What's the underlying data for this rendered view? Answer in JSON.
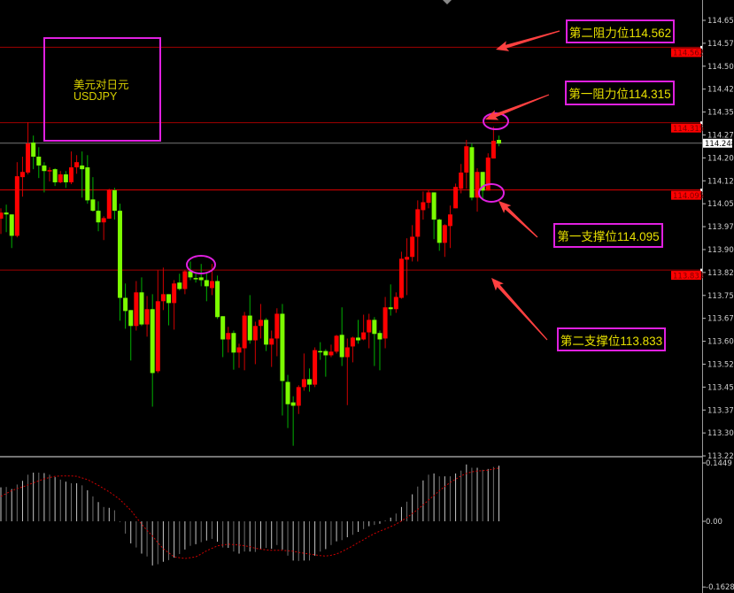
{
  "chart_data": {
    "type": "candlestick",
    "symbol_label": "美元对日元",
    "symbol": "USDJPY",
    "colors": {
      "bull": "#ff0000",
      "bear": "#7cfc00",
      "bull_wick": "#d00000",
      "bear_wick": "#00b000",
      "level_line": "#b00000",
      "annotation_border": "#e020e0",
      "annotation_text": "#e8e000",
      "macd_bar": "#b8b8b8",
      "macd_signal": "#d00000"
    },
    "price_axis": {
      "ylim": [
        113.225,
        114.675
      ],
      "ticks": [
        "114.650",
        "114.575",
        "114.500",
        "114.425",
        "114.350",
        "114.275",
        "114.200",
        "114.125",
        "114.050",
        "113.975",
        "113.900",
        "113.825",
        "113.750",
        "113.675",
        "113.600",
        "113.525",
        "113.450",
        "113.375",
        "113.300",
        "113.225"
      ],
      "current_price": "114.248"
    },
    "candles_ohlc": [
      [
        114.001,
        114.035,
        113.951,
        114.021
      ],
      [
        114.021,
        114.047,
        113.957,
        114.015
      ],
      [
        114.015,
        114.015,
        113.905,
        113.945
      ],
      [
        113.945,
        114.186,
        113.94,
        114.14
      ],
      [
        114.137,
        114.204,
        114.073,
        114.154
      ],
      [
        114.152,
        114.317,
        114.146,
        114.247
      ],
      [
        114.25,
        114.273,
        114.163,
        114.204
      ],
      [
        114.204,
        114.235,
        114.134,
        114.175
      ],
      [
        114.175,
        114.186,
        114.087,
        114.157
      ],
      [
        114.157,
        114.169,
        114.123,
        114.16
      ],
      [
        114.163,
        114.166,
        114.108,
        114.12
      ],
      [
        114.12,
        114.157,
        114.117,
        114.146
      ],
      [
        114.146,
        114.157,
        114.102,
        114.12
      ],
      [
        114.12,
        114.221,
        114.114,
        114.169
      ],
      [
        114.169,
        114.209,
        114.148,
        114.186
      ],
      [
        114.175,
        114.221,
        114.07,
        114.163
      ],
      [
        114.169,
        114.209,
        114.05,
        114.061
      ],
      [
        114.064,
        114.137,
        114.024,
        114.027
      ],
      [
        114.027,
        114.058,
        113.96,
        113.989
      ],
      [
        113.989,
        114.009,
        113.931,
        114.003
      ],
      [
        114.001,
        114.099,
        114.001,
        114.096
      ],
      [
        114.094,
        114.102,
        113.998,
        114.027
      ],
      [
        114.027,
        114.05,
        113.667,
        113.742
      ],
      [
        113.742,
        113.789,
        113.641,
        113.699
      ],
      [
        113.702,
        113.702,
        113.537,
        113.65
      ],
      [
        113.65,
        113.797,
        113.635,
        113.76
      ],
      [
        113.76,
        113.809,
        113.65,
        113.655
      ],
      [
        113.655,
        113.748,
        113.615,
        113.705
      ],
      [
        113.705,
        113.754,
        113.386,
        113.496
      ],
      [
        113.502,
        113.832,
        113.496,
        113.731
      ],
      [
        113.731,
        113.841,
        113.702,
        113.754
      ],
      [
        113.754,
        113.754,
        113.652,
        113.725
      ],
      [
        113.725,
        113.8,
        113.638,
        113.789
      ],
      [
        113.792,
        113.821,
        113.766,
        113.771
      ],
      [
        113.771,
        113.832,
        113.754,
        113.829
      ],
      [
        113.829,
        113.861,
        113.8,
        113.809
      ],
      [
        113.807,
        113.824,
        113.792,
        113.806
      ],
      [
        113.809,
        113.853,
        113.78,
        113.8
      ],
      [
        113.8,
        113.826,
        113.731,
        113.78
      ],
      [
        113.774,
        113.853,
        113.751,
        113.797
      ],
      [
        113.797,
        113.815,
        113.673,
        113.679
      ],
      [
        113.682,
        113.682,
        113.548,
        113.606
      ],
      [
        113.606,
        113.647,
        113.563,
        113.627
      ],
      [
        113.627,
        113.635,
        113.507,
        113.563
      ],
      [
        113.563,
        113.592,
        113.513,
        113.58
      ],
      [
        113.577,
        113.696,
        113.505,
        113.684
      ],
      [
        113.684,
        113.751,
        113.592,
        113.603
      ],
      [
        113.603,
        113.664,
        113.525,
        113.65
      ],
      [
        113.65,
        113.722,
        113.609,
        113.67
      ],
      [
        113.67,
        113.676,
        113.568,
        113.589
      ],
      [
        113.589,
        113.635,
        113.516,
        113.609
      ],
      [
        113.609,
        113.708,
        113.551,
        113.69
      ],
      [
        113.69,
        113.722,
        113.357,
        113.47
      ],
      [
        113.467,
        113.49,
        113.316,
        113.394
      ],
      [
        113.4,
        113.42,
        113.258,
        113.389
      ],
      [
        113.389,
        113.456,
        113.362,
        113.45
      ],
      [
        113.45,
        113.56,
        113.438,
        113.476
      ],
      [
        113.476,
        113.511,
        113.435,
        113.458
      ],
      [
        113.458,
        113.58,
        113.45,
        113.571
      ],
      [
        113.568,
        113.597,
        113.539,
        113.566
      ],
      [
        113.568,
        113.574,
        113.484,
        113.554
      ],
      [
        113.554,
        113.589,
        113.548,
        113.566
      ],
      [
        113.566,
        113.621,
        113.56,
        113.618
      ],
      [
        113.621,
        113.711,
        113.519,
        113.548
      ],
      [
        113.548,
        113.609,
        113.391,
        113.58
      ],
      [
        113.583,
        113.615,
        113.531,
        113.612
      ],
      [
        113.612,
        113.67,
        113.592,
        113.603
      ],
      [
        113.606,
        113.687,
        113.603,
        113.629
      ],
      [
        113.629,
        113.69,
        113.577,
        113.67
      ],
      [
        113.67,
        113.679,
        113.519,
        113.624
      ],
      [
        113.627,
        113.635,
        113.505,
        113.606
      ],
      [
        113.609,
        113.745,
        113.577,
        113.711
      ],
      [
        113.711,
        113.786,
        113.684,
        113.705
      ],
      [
        113.705,
        113.76,
        113.693,
        113.745
      ],
      [
        113.742,
        113.893,
        113.739,
        113.87
      ],
      [
        113.867,
        113.937,
        113.751,
        113.876
      ],
      [
        113.876,
        113.98,
        113.861,
        113.942
      ],
      [
        113.942,
        114.061,
        113.861,
        114.032
      ],
      [
        114.029,
        114.09,
        113.998,
        114.055
      ],
      [
        114.053,
        114.096,
        114.035,
        114.087
      ],
      [
        114.087,
        114.087,
        113.934,
        113.998
      ],
      [
        113.998,
        114.001,
        113.896,
        113.922
      ],
      [
        113.922,
        113.983,
        113.876,
        113.98
      ],
      [
        113.977,
        114.044,
        113.905,
        114.015
      ],
      [
        114.035,
        114.116,
        114.035,
        114.105
      ],
      [
        114.099,
        114.18,
        114.084,
        114.152
      ],
      [
        114.152,
        114.259,
        114.099,
        114.238
      ],
      [
        114.235,
        114.247,
        114.061,
        114.07
      ],
      [
        114.07,
        114.166,
        114.024,
        114.154
      ],
      [
        114.154,
        114.154,
        114.061,
        114.093
      ],
      [
        114.093,
        114.215,
        114.093,
        114.201
      ],
      [
        114.198,
        114.302,
        114.198,
        114.256
      ],
      [
        114.259,
        114.273,
        114.238,
        114.247
      ]
    ],
    "levels": [
      {
        "price": 114.562,
        "axis_label": "114.562",
        "annotation": "第二阻力位114.562"
      },
      {
        "price": 114.315,
        "axis_label": "114.315",
        "annotation": "第一阻力位114.315"
      },
      {
        "price": 114.095,
        "axis_label": "114.095",
        "annotation": "第一支撑位114.095"
      },
      {
        "price": 113.833,
        "axis_label": "113.833",
        "annotation": "第二支撑位113.833"
      }
    ],
    "macd": {
      "axis_labels": {
        "top": "0.1449",
        "zero": "0.00",
        "bottom": "-0.1628"
      },
      "ylim": [
        -0.1628,
        0.1449
      ],
      "histogram": [
        0.083,
        0.084,
        0.079,
        0.09,
        0.099,
        0.114,
        0.119,
        0.119,
        0.118,
        0.114,
        0.108,
        0.102,
        0.097,
        0.093,
        0.093,
        0.088,
        0.076,
        0.061,
        0.047,
        0.035,
        0.033,
        0.027,
        -0.001,
        -0.03,
        -0.054,
        -0.064,
        -0.079,
        -0.086,
        -0.108,
        -0.105,
        -0.099,
        -0.095,
        -0.089,
        -0.08,
        -0.069,
        -0.06,
        -0.056,
        -0.051,
        -0.047,
        -0.043,
        -0.05,
        -0.064,
        -0.065,
        -0.074,
        -0.079,
        -0.074,
        -0.074,
        -0.075,
        -0.067,
        -0.065,
        -0.067,
        -0.058,
        -0.069,
        -0.084,
        -0.096,
        -0.097,
        -0.096,
        -0.096,
        -0.084,
        -0.074,
        -0.068,
        -0.058,
        -0.049,
        -0.046,
        -0.039,
        -0.033,
        -0.026,
        -0.019,
        -0.012,
        -0.009,
        -0.006,
        0.002,
        0.009,
        0.019,
        0.035,
        0.048,
        0.066,
        0.085,
        0.1,
        0.114,
        0.117,
        0.11,
        0.11,
        0.11,
        0.117,
        0.124,
        0.139,
        0.131,
        0.131,
        0.126,
        0.128,
        0.133,
        0.136
      ],
      "signal": [
        0.061,
        0.068,
        0.075,
        0.08,
        0.084,
        0.089,
        0.094,
        0.099,
        0.104,
        0.107,
        0.11,
        0.111,
        0.111,
        0.111,
        0.11,
        0.106,
        0.102,
        0.095,
        0.088,
        0.08,
        0.072,
        0.063,
        0.053,
        0.04,
        0.027,
        0.01,
        -0.007,
        -0.022,
        -0.036,
        -0.052,
        -0.067,
        -0.077,
        -0.087,
        -0.089,
        -0.091,
        -0.089,
        -0.087,
        -0.08,
        -0.072,
        -0.066,
        -0.06,
        -0.058,
        -0.056,
        -0.057,
        -0.058,
        -0.06,
        -0.062,
        -0.066,
        -0.068,
        -0.07,
        -0.071,
        -0.071,
        -0.071,
        -0.072,
        -0.073,
        -0.076,
        -0.078,
        -0.08,
        -0.082,
        -0.084,
        -0.085,
        -0.083,
        -0.08,
        -0.074,
        -0.067,
        -0.06,
        -0.052,
        -0.045,
        -0.037,
        -0.03,
        -0.024,
        -0.019,
        -0.013,
        -0.007,
        0.001,
        0.009,
        0.019,
        0.029,
        0.04,
        0.052,
        0.063,
        0.075,
        0.085,
        0.095,
        0.103,
        0.111,
        0.117,
        0.121,
        0.123,
        0.124,
        0.125,
        0.128,
        0.13
      ]
    }
  }
}
